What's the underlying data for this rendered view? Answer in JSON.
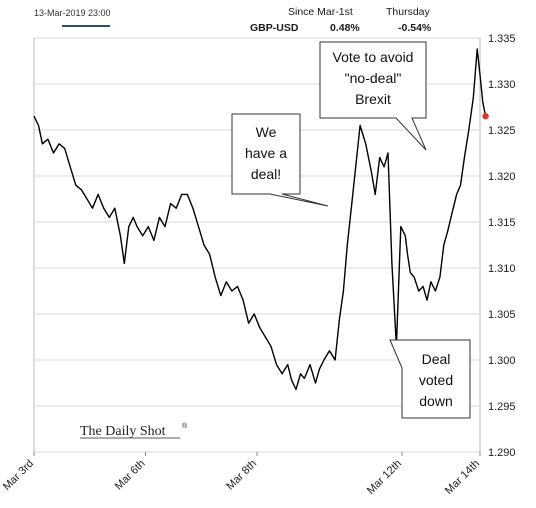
{
  "header": {
    "timestamp": "13-Mar-2019 23:00",
    "col1_label": "Since Mar-1st",
    "col2_label": "Thursday",
    "series_name": "GBP-USD",
    "since_value": "0.48%",
    "thursday_value": "-0.54%"
  },
  "brand": "The Daily Shot",
  "brand_mark": "®",
  "colors": {
    "line": "#000000",
    "last_point": "#e0382b",
    "legend_line": "#2f4f5f",
    "grid": "#d9d9d9"
  },
  "chart_data": {
    "type": "line",
    "title": "",
    "xlabel": "",
    "ylabel": "",
    "ylim": [
      1.29,
      1.335
    ],
    "yticks": [
      "1.290",
      "1.295",
      "1.300",
      "1.305",
      "1.310",
      "1.315",
      "1.320",
      "1.325",
      "1.330",
      "1.335"
    ],
    "ytick_values": [
      1.29,
      1.295,
      1.3,
      1.305,
      1.31,
      1.315,
      1.32,
      1.325,
      1.33,
      1.335
    ],
    "xlim": [
      0,
      8
    ],
    "xticks": [
      "Mar 3rd",
      "Mar 6th",
      "Mar 8th",
      "Mar 12th",
      "Mar 14th"
    ],
    "xtick_values": [
      0,
      2,
      4,
      6.6,
      8
    ],
    "grid": "horizontal",
    "series": [
      {
        "name": "GBP-USD",
        "x": [
          0,
          0.08,
          0.15,
          0.25,
          0.35,
          0.45,
          0.55,
          0.65,
          0.75,
          0.85,
          0.95,
          1.05,
          1.15,
          1.25,
          1.35,
          1.45,
          1.55,
          1.62,
          1.7,
          1.78,
          1.85,
          1.95,
          2.05,
          2.15,
          2.25,
          2.35,
          2.45,
          2.55,
          2.65,
          2.75,
          2.85,
          2.95,
          3.05,
          3.15,
          3.25,
          3.35,
          3.45,
          3.55,
          3.65,
          3.75,
          3.85,
          3.95,
          4.05,
          4.15,
          4.25,
          4.35,
          4.45,
          4.55,
          4.62,
          4.7,
          4.78,
          4.85,
          4.95,
          5.05,
          5.12,
          5.2,
          5.3,
          5.4,
          5.48,
          5.55,
          5.62,
          5.7,
          5.78,
          5.85,
          5.95,
          6.05,
          6.12,
          6.2,
          6.28,
          6.35,
          6.42,
          6.5,
          6.58,
          6.66,
          6.7,
          6.75,
          6.82,
          6.9,
          6.98,
          7.05,
          7.12,
          7.2,
          7.28,
          7.35,
          7.42,
          7.5,
          7.58,
          7.65,
          7.72,
          7.8,
          7.88,
          7.95,
          8.0,
          8.05,
          8.1
        ],
        "values": [
          1.3265,
          1.3255,
          1.3235,
          1.324,
          1.3225,
          1.3235,
          1.323,
          1.321,
          1.319,
          1.3185,
          1.3175,
          1.3165,
          1.318,
          1.3165,
          1.3155,
          1.3165,
          1.3135,
          1.3105,
          1.3145,
          1.3155,
          1.3145,
          1.3135,
          1.3145,
          1.313,
          1.3155,
          1.3145,
          1.317,
          1.3165,
          1.318,
          1.318,
          1.3165,
          1.3145,
          1.3125,
          1.3115,
          1.309,
          1.307,
          1.3085,
          1.3075,
          1.308,
          1.3065,
          1.304,
          1.305,
          1.3035,
          1.3025,
          1.3015,
          1.2995,
          1.2985,
          1.2995,
          1.2978,
          1.2968,
          1.2985,
          1.298,
          1.2995,
          1.2975,
          1.299,
          1.3,
          1.301,
          1.3,
          1.3045,
          1.3075,
          1.3125,
          1.317,
          1.3215,
          1.3255,
          1.3235,
          1.3205,
          1.318,
          1.322,
          1.321,
          1.3225,
          1.3105,
          1.3015,
          1.3145,
          1.3135,
          1.3115,
          1.3095,
          1.309,
          1.3075,
          1.308,
          1.3065,
          1.3085,
          1.3075,
          1.309,
          1.3125,
          1.314,
          1.316,
          1.318,
          1.319,
          1.322,
          1.325,
          1.3285,
          1.3338,
          1.331,
          1.328,
          1.3265
        ]
      }
    ],
    "annotations": [
      {
        "lines": [
          "We",
          "have a",
          "deal!"
        ]
      },
      {
        "lines": [
          "Vote to avoid",
          "\"no-deal\"",
          "Brexit"
        ]
      },
      {
        "lines": [
          "Deal",
          "voted",
          "down"
        ]
      }
    ]
  }
}
